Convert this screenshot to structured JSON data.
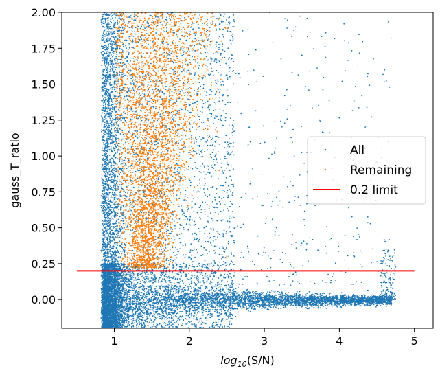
{
  "chart_data": {
    "type": "scatter",
    "title": "",
    "xlabel": "log10(S/N)",
    "xlabel_parts": {
      "italic": "log",
      "sub": "10",
      "rest": "(S/N)"
    },
    "ylabel": "gauss_T_ratio",
    "xlim": [
      0.3,
      5.25
    ],
    "ylim": [
      -0.2,
      2.0
    ],
    "x_ticks": [
      1,
      2,
      3,
      4,
      5
    ],
    "y_ticks": [
      0.0,
      0.25,
      0.5,
      0.75,
      1.0,
      1.25,
      1.5,
      1.75,
      2.0
    ],
    "x_tick_labels": [
      "1",
      "2",
      "3",
      "4",
      "5"
    ],
    "y_tick_labels": [
      "0.00",
      "0.25",
      "0.50",
      "0.75",
      "1.00",
      "1.25",
      "1.50",
      "1.75",
      "2.00"
    ],
    "legend_position": "center-right",
    "series": [
      {
        "name": "All",
        "marker": "dot",
        "color": "#1f77b4",
        "points": [
          [
            0.9,
            0.1
          ],
          [
            1.0,
            -0.05
          ],
          [
            1.2,
            0.02
          ],
          [
            1.5,
            0.0
          ],
          [
            2.0,
            0.01
          ],
          [
            2.5,
            0.0
          ],
          [
            3.0,
            0.01
          ],
          [
            3.5,
            0.0
          ],
          [
            4.0,
            0.0
          ],
          [
            4.5,
            0.01
          ],
          [
            4.7,
            0.05
          ],
          [
            1.0,
            1.5
          ],
          [
            1.1,
            0.8
          ],
          [
            2.8,
            1.2
          ],
          [
            3.5,
            1.7
          ],
          [
            4.2,
            0.3
          ],
          [
            4.6,
            1.6
          ],
          [
            0.85,
            1.9
          ]
        ]
      },
      {
        "name": "Remaining",
        "marker": "dot",
        "color": "#ff7f0e",
        "points": [
          [
            1.2,
            0.25
          ],
          [
            1.3,
            0.5
          ],
          [
            1.5,
            0.75
          ],
          [
            1.8,
            1.0
          ],
          [
            2.0,
            1.5
          ],
          [
            2.3,
            1.8
          ],
          [
            1.6,
            0.35
          ],
          [
            2.4,
            0.9
          ],
          [
            1.1,
            1.95
          ],
          [
            2.5,
            0.3
          ]
        ]
      },
      {
        "name": "0.2 limit",
        "type": "line",
        "color": "#ff0000",
        "points": [
          [
            0.5,
            0.2
          ],
          [
            5.0,
            0.2
          ]
        ]
      }
    ]
  }
}
